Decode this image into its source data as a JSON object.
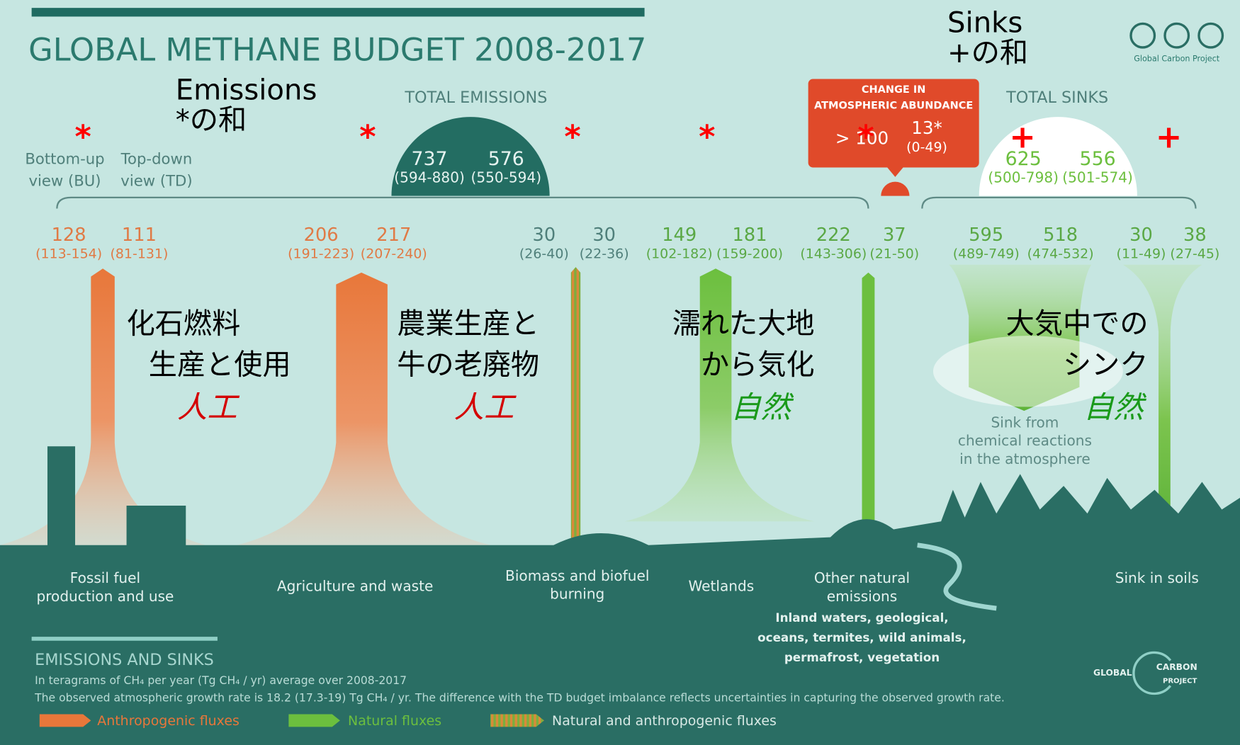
{
  "header": {
    "title": "GLOBAL METHANE BUDGET 2008-2017",
    "logo_text": "Global Carbon Project"
  },
  "views": {
    "bu": [
      "Bottom-up",
      "view (BU)"
    ],
    "td": [
      "Top-down",
      "view  (TD)"
    ]
  },
  "total_emissions": {
    "label": "TOTAL EMISSIONS",
    "bu": "737",
    "bu_range": "(594-880)",
    "td": "576",
    "td_range": "(550-594)"
  },
  "change": {
    "label": [
      "CHANGE IN",
      "ATMOSPHERIC ABUNDANCE"
    ],
    "bu": "> 100",
    "td": "13*",
    "td_range": "(0-49)"
  },
  "total_sinks": {
    "label": "TOTAL SINKS",
    "bu": "625",
    "bu_range": "(500-798)",
    "td": "556",
    "td_range": "(501-574)"
  },
  "fluxes": [
    {
      "label": [
        "Fossil fuel",
        "production and use"
      ],
      "bu": "128",
      "bu_range": "(113-154)",
      "td": "111",
      "td_range": "(81-131)"
    },
    {
      "label": [
        "Agriculture and waste"
      ],
      "bu": "206",
      "bu_range": "(191-223)",
      "td": "217",
      "td_range": "(207-240)"
    },
    {
      "label": [
        "Biomass and biofuel",
        "burning"
      ],
      "bu": "30",
      "bu_range": "(26-40)",
      "td": "30",
      "td_range": "(22-36)"
    },
    {
      "label": [
        "Wetlands"
      ],
      "bu": "149",
      "bu_range": "(102-182)",
      "td": "181",
      "td_range": "(159-200)"
    },
    {
      "label": [
        "Other natural",
        "emissions"
      ],
      "bu": "222",
      "bu_range": "(143-306)",
      "td": "37",
      "td_range": "(21-50)"
    },
    {
      "label": [
        "Sink from",
        "chemical reactions",
        "in the atmosphere"
      ],
      "bu": "595",
      "bu_range": "(489-749)",
      "td": "518",
      "td_range": "(474-532)"
    },
    {
      "label": [
        "Sink in soils"
      ],
      "bu": "30",
      "bu_range": "(11-49)",
      "td": "38",
      "td_range": "(27-45)"
    }
  ],
  "other_detail": [
    "Inland waters, geological,",
    "oceans, termites, wild animals,",
    "permafrost, vegetation"
  ],
  "footer": {
    "heading": "EMISSIONS AND SINKS",
    "unit_note": "In teragrams of CH₄ per year (Tg CH₄ / yr) average over 2008-2017",
    "growth_note": "The observed atmospheric growth rate is 18.2 (17.3-19) Tg CH₄ / yr. The difference with the TD budget imbalance reflects uncertainties in capturing the observed growth rate.",
    "legend": [
      "Anthropogenic fluxes",
      "Natural fluxes",
      "Natural and anthropogenic fluxes"
    ],
    "brand": [
      "GLOBAL",
      "CARBON",
      "PROJECT"
    ]
  },
  "annotations": {
    "emissions_sum": [
      "Emissions",
      "*の和"
    ],
    "sinks_sum": [
      "Sinks",
      "+の和"
    ],
    "markers": [
      "*",
      "*",
      "*",
      "*",
      "*",
      "+",
      "+"
    ],
    "fossil": [
      "化石燃料",
      "生産と使用"
    ],
    "fossil_kind": "人工",
    "agriculture": [
      "農業生産と",
      "牛の老廃物"
    ],
    "agriculture_kind": "人工",
    "wetlands": [
      "濡れた大地",
      "から気化"
    ],
    "wetlands_kind": "自然",
    "sink": [
      "大気中での",
      "シンク"
    ],
    "sink_kind": "自然"
  }
}
